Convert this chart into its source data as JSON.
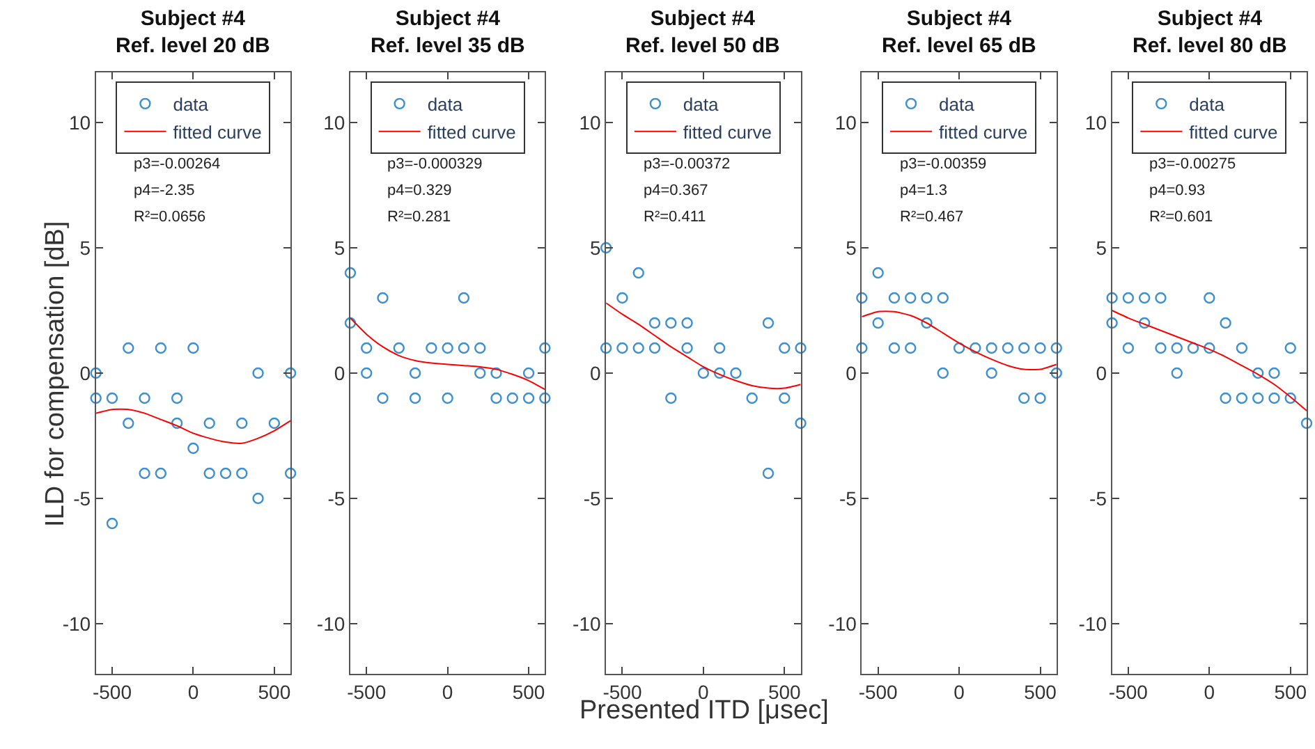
{
  "chart_data": [
    {
      "type": "scatter",
      "title": "Subject #4\nRef. level 20 dB",
      "ylabel": "ILD for compensation [dB]",
      "xlim": [
        -600,
        600
      ],
      "ylim": [
        -12,
        12
      ],
      "xticks": [
        -500,
        0,
        500
      ],
      "yticks": [
        -10,
        -5,
        0,
        5,
        10
      ],
      "legend": "top",
      "annotations": [
        "p3=-0.00264",
        "p4=-2.35",
        "R²=0.0656"
      ],
      "series": [
        {
          "name": "data",
          "marker": "circle",
          "color": "#3d8fd0",
          "x": [
            -600,
            -600,
            -500,
            -500,
            -400,
            -400,
            -300,
            -300,
            -200,
            -200,
            -100,
            -100,
            0,
            0,
            100,
            100,
            200,
            300,
            300,
            400,
            400,
            500,
            600,
            600
          ],
          "values": [
            0,
            -1,
            -1,
            -6,
            1,
            -2,
            -1,
            -4,
            1,
            -4,
            -1,
            -2,
            1,
            -3,
            -2,
            -4,
            -4,
            -2,
            -4,
            0,
            -5,
            -2,
            0,
            -4
          ]
        },
        {
          "name": "fitted curve",
          "type": "line",
          "color": "#ff0000",
          "marker": "none",
          "x": [
            -600,
            -500,
            -400,
            -300,
            -200,
            -100,
            0,
            100,
            200,
            300,
            400,
            500,
            600
          ],
          "values": [
            -1.6,
            -1.45,
            -1.45,
            -1.6,
            -1.85,
            -2.1,
            -2.4,
            -2.6,
            -2.75,
            -2.8,
            -2.6,
            -2.3,
            -1.9
          ]
        }
      ]
    },
    {
      "type": "scatter",
      "title": "Subject #4\nRef. level 35 dB",
      "xlim": [
        -600,
        600
      ],
      "ylim": [
        -12,
        12
      ],
      "xticks": [
        -500,
        0,
        500
      ],
      "yticks": [
        -10,
        -5,
        0,
        5,
        10
      ],
      "legend": "top",
      "annotations": [
        "p3=-0.000329",
        "p4=0.329",
        "R²=0.281"
      ],
      "series": [
        {
          "name": "data",
          "marker": "circle",
          "color": "#3d8fd0",
          "x": [
            -600,
            -600,
            -500,
            -500,
            -400,
            -400,
            -300,
            -200,
            -200,
            -100,
            0,
            0,
            100,
            100,
            200,
            200,
            300,
            300,
            400,
            500,
            500,
            600,
            600
          ],
          "values": [
            4,
            2,
            1,
            0,
            3,
            -1,
            1,
            0,
            -1,
            1,
            1,
            -1,
            3,
            1,
            1,
            0,
            0,
            -1,
            -1,
            0,
            -1,
            1,
            -1
          ]
        },
        {
          "name": "fitted curve",
          "type": "line",
          "color": "#ff0000",
          "marker": "none",
          "x": [
            -600,
            -500,
            -400,
            -300,
            -200,
            -100,
            0,
            100,
            200,
            300,
            400,
            500,
            600
          ],
          "values": [
            2.2,
            1.55,
            1.05,
            0.7,
            0.5,
            0.4,
            0.35,
            0.3,
            0.25,
            0.15,
            -0.05,
            -0.3,
            -0.65
          ]
        }
      ]
    },
    {
      "type": "scatter",
      "title": "Subject #4\nRef. level 50 dB",
      "xlabel": "Presented ITD [μsec]",
      "xlim": [
        -600,
        600
      ],
      "ylim": [
        -12,
        12
      ],
      "xticks": [
        -500,
        0,
        500
      ],
      "yticks": [
        -10,
        -5,
        0,
        5,
        10
      ],
      "legend": "top",
      "annotations": [
        "p3=-0.00372",
        "p4=0.367",
        "R²=0.411"
      ],
      "series": [
        {
          "name": "data",
          "marker": "circle",
          "color": "#3d8fd0",
          "x": [
            -600,
            -600,
            -500,
            -500,
            -400,
            -400,
            -300,
            -300,
            -200,
            -200,
            -100,
            -100,
            0,
            100,
            100,
            200,
            300,
            400,
            400,
            500,
            500,
            600,
            600
          ],
          "values": [
            5,
            1,
            3,
            1,
            4,
            1,
            2,
            1,
            2,
            -1,
            2,
            1,
            0,
            1,
            0,
            0,
            -1,
            2,
            -4,
            1,
            -1,
            1,
            -2
          ]
        },
        {
          "name": "fitted curve",
          "type": "line",
          "color": "#ff0000",
          "marker": "none",
          "x": [
            -600,
            -500,
            -400,
            -300,
            -200,
            -100,
            0,
            100,
            200,
            300,
            400,
            500,
            600
          ],
          "values": [
            2.8,
            2.35,
            1.95,
            1.5,
            1.05,
            0.65,
            0.25,
            -0.05,
            -0.3,
            -0.5,
            -0.6,
            -0.6,
            -0.45
          ]
        }
      ]
    },
    {
      "type": "scatter",
      "title": "Subject #4\nRef. level 65 dB",
      "xlim": [
        -600,
        600
      ],
      "ylim": [
        -12,
        12
      ],
      "xticks": [
        -500,
        0,
        500
      ],
      "yticks": [
        -10,
        -5,
        0,
        5,
        10
      ],
      "legend": "top",
      "annotations": [
        "p3=-0.00359",
        "p4=1.3",
        "R²=0.467"
      ],
      "series": [
        {
          "name": "data",
          "marker": "circle",
          "color": "#3d8fd0",
          "x": [
            -600,
            -600,
            -500,
            -500,
            -400,
            -400,
            -300,
            -300,
            -200,
            -200,
            -100,
            -100,
            0,
            100,
            200,
            200,
            300,
            400,
            400,
            500,
            500,
            600,
            600
          ],
          "values": [
            3,
            1,
            4,
            2,
            3,
            1,
            3,
            1,
            3,
            2,
            3,
            0,
            1,
            1,
            1,
            0,
            1,
            1,
            -1,
            1,
            -1,
            1,
            0
          ]
        },
        {
          "name": "fitted curve",
          "type": "line",
          "color": "#ff0000",
          "marker": "none",
          "x": [
            -600,
            -500,
            -400,
            -300,
            -200,
            -100,
            0,
            100,
            200,
            300,
            400,
            500,
            600
          ],
          "values": [
            2.25,
            2.45,
            2.45,
            2.3,
            2.0,
            1.6,
            1.2,
            0.85,
            0.55,
            0.3,
            0.15,
            0.15,
            0.35
          ]
        }
      ]
    },
    {
      "type": "scatter",
      "title": "Subject #4\nRef. level 80 dB",
      "xlim": [
        -600,
        600
      ],
      "ylim": [
        -12,
        12
      ],
      "xticks": [
        -500,
        0,
        500
      ],
      "yticks": [
        -10,
        -5,
        0,
        5,
        10
      ],
      "legend": "top",
      "annotations": [
        "p3=-0.00275",
        "p4=0.93",
        "R²=0.601"
      ],
      "series": [
        {
          "name": "data",
          "marker": "circle",
          "color": "#3d8fd0",
          "x": [
            -600,
            -600,
            -500,
            -500,
            -400,
            -400,
            -300,
            -300,
            -200,
            -200,
            -100,
            0,
            0,
            100,
            100,
            200,
            200,
            300,
            300,
            400,
            400,
            500,
            500,
            600
          ],
          "values": [
            3,
            2,
            3,
            1,
            3,
            2,
            3,
            1,
            1,
            0,
            1,
            3,
            1,
            2,
            -1,
            1,
            -1,
            0,
            -1,
            0,
            -1,
            1,
            -1,
            -2
          ]
        },
        {
          "name": "fitted curve",
          "type": "line",
          "color": "#ff0000",
          "marker": "none",
          "x": [
            -600,
            -500,
            -400,
            -300,
            -200,
            -100,
            0,
            100,
            200,
            300,
            400,
            500,
            600
          ],
          "values": [
            2.5,
            2.2,
            1.95,
            1.7,
            1.45,
            1.2,
            0.95,
            0.65,
            0.3,
            -0.05,
            -0.45,
            -0.95,
            -1.5
          ]
        }
      ]
    }
  ]
}
